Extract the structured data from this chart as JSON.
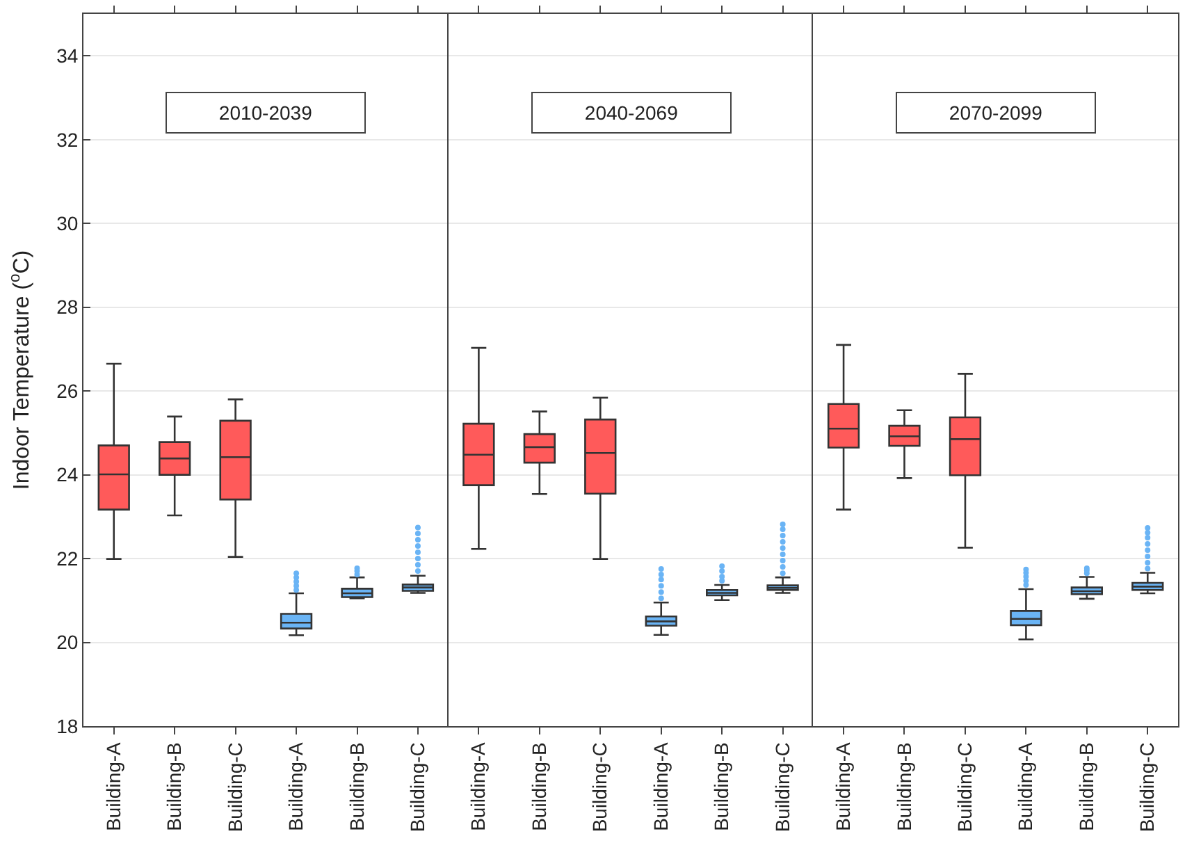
{
  "chart_data": [
    {
      "type": "box",
      "title": "2010-2039",
      "ylabel": "Indoor Temperature ($^{o}$C)",
      "categories": [
        "Building-A",
        "Building-B",
        "Building-C",
        "Building-A",
        "Building-B",
        "Building-C"
      ],
      "ylim": [
        18,
        35
      ],
      "yticks": [
        18,
        20,
        22,
        24,
        26,
        28,
        30,
        32,
        34
      ],
      "grid": "y",
      "colors": [
        "#ff5a5a",
        "#ff5a5a",
        "#ff5a5a",
        "#6ab4f5",
        "#6ab4f5",
        "#6ab4f5"
      ],
      "boxes": [
        {
          "low": 21.99,
          "q1": 23.17,
          "median": 24.01,
          "q3": 24.7,
          "high": 26.65
        },
        {
          "low": 23.03,
          "q1": 24.0,
          "median": 24.39,
          "q3": 24.78,
          "high": 25.39
        },
        {
          "low": 22.04,
          "q1": 23.41,
          "median": 24.42,
          "q3": 25.29,
          "high": 25.8
        },
        {
          "low": 20.17,
          "q1": 20.33,
          "median": 20.47,
          "q3": 20.68,
          "high": 21.17,
          "outliers": [
            21.25,
            21.35,
            21.45,
            21.55,
            21.65
          ]
        },
        {
          "low": 21.05,
          "q1": 21.08,
          "median": 21.17,
          "q3": 21.28,
          "high": 21.55,
          "outliers": [
            21.62,
            21.7,
            21.77
          ]
        },
        {
          "low": 21.18,
          "q1": 21.23,
          "median": 21.31,
          "q3": 21.38,
          "high": 21.59,
          "outliers": [
            21.7,
            21.85,
            22.0,
            22.15,
            22.3,
            22.45,
            22.6,
            22.74
          ]
        }
      ]
    },
    {
      "type": "box",
      "title": "2040-2069",
      "tick_labels": "x",
      "categories": [
        "Building-A",
        "Building-B",
        "Building-C",
        "Building-A",
        "Building-B",
        "Building-C"
      ],
      "ylim": [
        18,
        35
      ],
      "yticks": [
        18,
        20,
        22,
        24,
        26,
        28,
        30,
        32,
        34
      ],
      "grid": "y",
      "colors": [
        "#ff5a5a",
        "#ff5a5a",
        "#ff5a5a",
        "#6ab4f5",
        "#6ab4f5",
        "#6ab4f5"
      ],
      "boxes": [
        {
          "low": 22.23,
          "q1": 23.75,
          "median": 24.48,
          "q3": 25.22,
          "high": 27.03
        },
        {
          "low": 23.54,
          "q1": 24.29,
          "median": 24.66,
          "q3": 24.97,
          "high": 25.51
        },
        {
          "low": 21.99,
          "q1": 23.55,
          "median": 24.52,
          "q3": 25.32,
          "high": 25.84
        },
        {
          "low": 20.18,
          "q1": 20.4,
          "median": 20.5,
          "q3": 20.62,
          "high": 20.95,
          "outliers": [
            21.05,
            21.2,
            21.35,
            21.5,
            21.62,
            21.75
          ]
        },
        {
          "low": 21.01,
          "q1": 21.12,
          "median": 21.18,
          "q3": 21.25,
          "high": 21.37,
          "outliers": [
            21.47,
            21.57,
            21.7,
            21.82
          ]
        },
        {
          "low": 21.18,
          "q1": 21.25,
          "median": 21.3,
          "q3": 21.36,
          "high": 21.55,
          "outliers": [
            21.65,
            21.8,
            21.95,
            22.1,
            22.25,
            22.4,
            22.55,
            22.7,
            22.82
          ]
        }
      ]
    },
    {
      "type": "box",
      "title": "2070-2099",
      "tick_labels": "x",
      "categories": [
        "Building-A",
        "Building-B",
        "Building-C",
        "Building-A",
        "Building-B",
        "Building-C"
      ],
      "ylim": [
        18,
        35
      ],
      "yticks": [
        18,
        20,
        22,
        24,
        26,
        28,
        30,
        32,
        34
      ],
      "grid": "y",
      "colors": [
        "#ff5a5a",
        "#ff5a5a",
        "#ff5a5a",
        "#6ab4f5",
        "#6ab4f5",
        "#6ab4f5"
      ],
      "boxes": [
        {
          "low": 23.17,
          "q1": 24.65,
          "median": 25.1,
          "q3": 25.69,
          "high": 27.1
        },
        {
          "low": 23.92,
          "q1": 24.69,
          "median": 24.92,
          "q3": 25.17,
          "high": 25.54
        },
        {
          "low": 22.26,
          "q1": 23.99,
          "median": 24.85,
          "q3": 25.37,
          "high": 26.41
        },
        {
          "low": 20.07,
          "q1": 20.41,
          "median": 20.56,
          "q3": 20.75,
          "high": 21.27,
          "outliers": [
            21.37,
            21.47,
            21.57,
            21.66,
            21.74
          ]
        },
        {
          "low": 21.04,
          "q1": 21.15,
          "median": 21.22,
          "q3": 21.31,
          "high": 21.56,
          "outliers": [
            21.65,
            21.72,
            21.77
          ]
        },
        {
          "low": 21.17,
          "q1": 21.25,
          "median": 21.33,
          "q3": 21.42,
          "high": 21.66,
          "outliers": [
            21.76,
            21.9,
            22.05,
            22.2,
            22.35,
            22.5,
            22.62,
            22.73
          ]
        }
      ]
    }
  ]
}
